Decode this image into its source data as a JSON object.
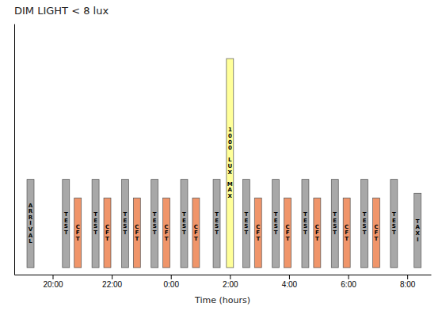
{
  "chart_data": {
    "type": "bar",
    "title": "DIM LIGHT < 8 lux",
    "xlabel": "Time (hours)",
    "x": [
      0.45,
      0.85,
      1.45,
      1.85,
      2.45,
      2.85,
      3.45,
      3.85,
      4.45,
      4.85,
      5.55,
      6.0,
      6.55,
      6.95,
      7.55,
      7.95,
      8.55,
      8.95,
      9.55,
      9.95,
      10.55,
      10.95,
      11.55,
      -0.75,
      12.35
    ],
    "values": [
      3.8,
      3.0,
      3.8,
      3.0,
      3.8,
      3.0,
      3.8,
      3.0,
      3.8,
      3.0,
      3.8,
      9.0,
      3.8,
      3.0,
      3.8,
      3.0,
      3.8,
      3.0,
      3.8,
      3.0,
      3.8,
      3.0,
      3.8,
      3.8,
      3.2
    ],
    "labels": [
      "TEST",
      "CFT",
      "TEST",
      "CFT",
      "TEST",
      "CFT",
      "TEST",
      "CFT",
      "TEST",
      "CFT",
      "TEST",
      "1000 LUX MAX",
      "TEST",
      "CFT",
      "TEST",
      "CFT",
      "TEST",
      "CFT",
      "TEST",
      "CFT",
      "TEST",
      "CFT",
      "TEST",
      "ARRIVAL",
      "TAXI"
    ],
    "colors": [
      "#a8a8a8",
      "#f0956a",
      "#a8a8a8",
      "#f0956a",
      "#a8a8a8",
      "#f0956a",
      "#a8a8a8",
      "#f0956a",
      "#a8a8a8",
      "#f0956a",
      "#a8a8a8",
      "#ffff99",
      "#a8a8a8",
      "#f0956a",
      "#a8a8a8",
      "#f0956a",
      "#a8a8a8",
      "#f0956a",
      "#a8a8a8",
      "#f0956a",
      "#a8a8a8",
      "#f0956a",
      "#a8a8a8",
      "#a8a8a8",
      "#a8a8a8"
    ],
    "xlim": [
      -1.3,
      12.8
    ],
    "xticks": [
      {
        "value": 0,
        "label": "20:00"
      },
      {
        "value": 2,
        "label": "22:00"
      },
      {
        "value": 4,
        "label": "0:00"
      },
      {
        "value": 6,
        "label": "2:00"
      },
      {
        "value": 8,
        "label": "4:00"
      },
      {
        "value": 10,
        "label": "6:00"
      },
      {
        "value": 12,
        "label": "8:00"
      }
    ],
    "ylim": [
      -0.3,
      10.5
    ],
    "yticks": [],
    "tick_labels": "x"
  }
}
